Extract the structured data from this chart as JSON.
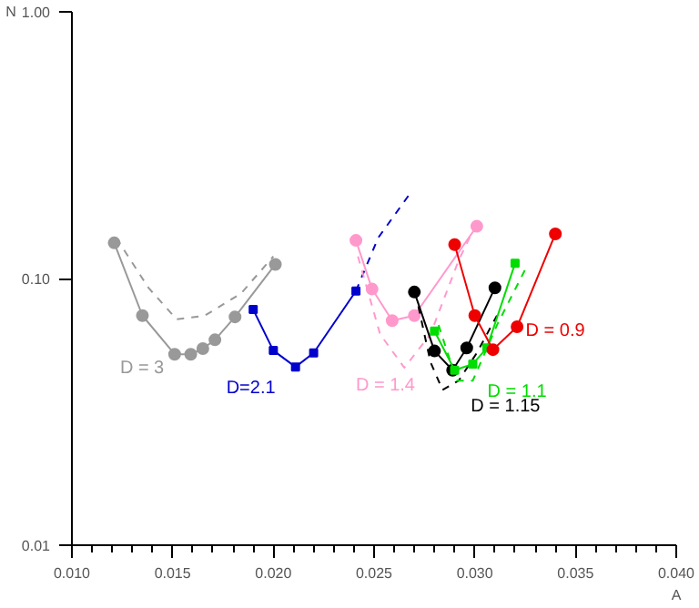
{
  "chart_data": {
    "type": "line",
    "xlabel": "A",
    "ylabel": "N",
    "log": "y",
    "grid": false,
    "xlim": [
      0.01,
      0.04
    ],
    "ylim": [
      0.01,
      1.0
    ],
    "xticks": [
      {
        "value": 0.01,
        "label": "0.010"
      },
      {
        "value": 0.015,
        "label": "0.015"
      },
      {
        "value": 0.02,
        "label": "0.020"
      },
      {
        "value": 0.025,
        "label": "0.025"
      },
      {
        "value": 0.03,
        "label": "0.030"
      },
      {
        "value": 0.035,
        "label": "0.035"
      },
      {
        "value": 0.04,
        "label": "0.040"
      }
    ],
    "yticks": [
      {
        "value": 0.01,
        "label": "0.01"
      },
      {
        "value": 0.1,
        "label": "0.10"
      },
      {
        "value": 1.0,
        "label": "1.00"
      }
    ],
    "series": [
      {
        "name": "D = 3",
        "color": "#999999",
        "marker": "circle",
        "line_style": "solid",
        "x": [
          0.0121,
          0.0135,
          0.0151,
          0.0159,
          0.0165,
          0.0171,
          0.0181,
          0.0201
        ],
        "values": [
          0.136,
          0.0726,
          0.052,
          0.052,
          0.0546,
          0.0589,
          0.0718,
          0.113
        ]
      },
      {
        "color": "#999999",
        "marker": "none",
        "line_style": "dashed",
        "x": [
          0.0122,
          0.0138,
          0.0152,
          0.0166,
          0.0184,
          0.02
        ],
        "values": [
          0.142,
          0.0923,
          0.0703,
          0.0726,
          0.088,
          0.121
        ]
      },
      {
        "name": "D=2.1",
        "color": "#0000cc",
        "marker": "square",
        "line_style": "solid",
        "x": [
          0.019,
          0.02,
          0.0211,
          0.022,
          0.0241
        ],
        "values": [
          0.0765,
          0.0537,
          0.0466,
          0.0526,
          0.0898
        ]
      },
      {
        "color": "#0000cc",
        "marker": "none",
        "line_style": "dashed",
        "x": [
          0.0241,
          0.0252,
          0.0268
        ],
        "values": [
          0.0898,
          0.142,
          0.209
        ]
      },
      {
        "name": "D = 1.4",
        "color": "#ff99cc",
        "marker": "circle",
        "line_style": "solid",
        "x": [
          0.0241,
          0.0249,
          0.0259,
          0.027,
          0.0301
        ],
        "values": [
          0.139,
          0.0913,
          0.0695,
          0.0726,
          0.157
        ]
      },
      {
        "color": "#ff99cc",
        "marker": "none",
        "line_style": "dashed",
        "x": [
          0.0242,
          0.0253,
          0.0265,
          0.0278,
          0.0292,
          0.0301
        ],
        "values": [
          0.121,
          0.0618,
          0.0463,
          0.0618,
          0.117,
          0.162
        ]
      },
      {
        "name": "D = 1.15",
        "color": "#000000",
        "marker": "circle",
        "line_style": "solid",
        "x": [
          0.027,
          0.028,
          0.0289,
          0.0296,
          0.031
        ],
        "values": [
          0.089,
          0.0535,
          0.0453,
          0.0549,
          0.0923
        ]
      },
      {
        "color": "#000000",
        "marker": "none",
        "line_style": "dashed",
        "x": [
          0.0272,
          0.0278,
          0.0284,
          0.0292,
          0.0301,
          0.0311
        ],
        "values": [
          0.0786,
          0.0486,
          0.0382,
          0.0414,
          0.0526,
          0.0726
        ]
      },
      {
        "name": "D = 1.1",
        "color": "#00dd00",
        "marker": "square",
        "line_style": "solid",
        "x": [
          0.028,
          0.029,
          0.0299,
          0.0306,
          0.032
        ],
        "values": [
          0.0635,
          0.0453,
          0.0478,
          0.0549,
          0.114
        ]
      },
      {
        "color": "#00dd00",
        "marker": "none",
        "line_style": "dashed",
        "x": [
          0.0282,
          0.0291,
          0.0299,
          0.0311,
          0.0325
        ],
        "values": [
          0.0669,
          0.0414,
          0.0414,
          0.0669,
          0.108
        ]
      },
      {
        "name": "D = 0.9",
        "color": "#ee0000",
        "marker": "circle",
        "line_style": "solid",
        "x": [
          0.029,
          0.03,
          0.0309,
          0.0321,
          0.034
        ],
        "values": [
          0.134,
          0.0726,
          0.0541,
          0.0659,
          0.147
        ]
      }
    ]
  }
}
